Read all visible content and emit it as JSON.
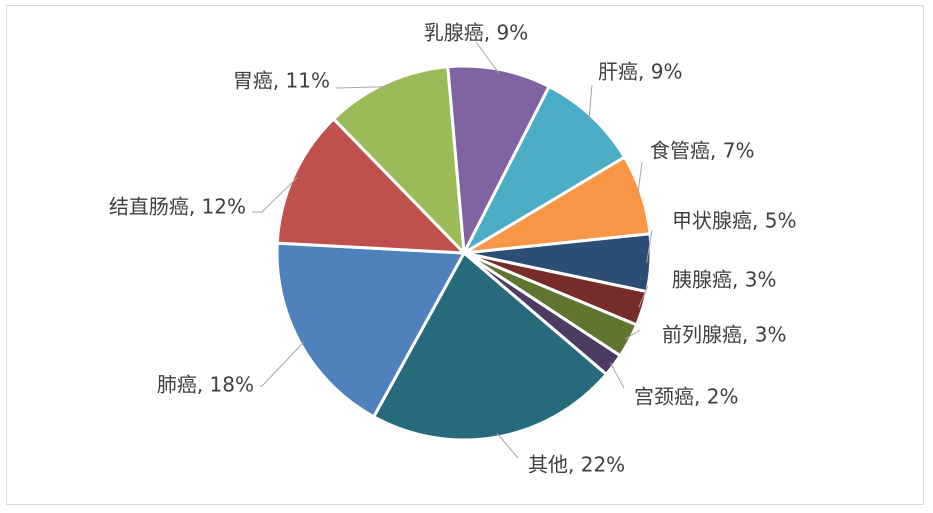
{
  "chart_data": {
    "type": "pie",
    "title": "",
    "legend": "none",
    "slices": [
      {
        "label": "乳腺癌, 9%",
        "name": "乳腺癌",
        "value": 9,
        "color": "#8064A2"
      },
      {
        "label": "肝癌, 9%",
        "name": "肝癌",
        "value": 9,
        "color": "#4BACC6"
      },
      {
        "label": "食管癌, 7%",
        "name": "食管癌",
        "value": 7,
        "color": "#F79646"
      },
      {
        "label": "甲状腺癌, 5%",
        "name": "甲状腺癌",
        "value": 5,
        "color": "#2C4D75"
      },
      {
        "label": "胰腺癌, 3%",
        "name": "胰腺癌",
        "value": 3,
        "color": "#772C2A"
      },
      {
        "label": "前列腺癌, 3%",
        "name": "前列腺癌",
        "value": 3,
        "color": "#5F7530"
      },
      {
        "label": "宫颈癌, 2%",
        "name": "宫颈癌",
        "value": 2,
        "color": "#4D3B62"
      },
      {
        "label": "其他, 22%",
        "name": "其他",
        "value": 22,
        "color": "#276A7C"
      },
      {
        "label": "肺癌, 18%",
        "name": "肺癌",
        "value": 18,
        "color": "#4F81BD"
      },
      {
        "label": "结直肠癌, 12%",
        "name": "结直肠癌",
        "value": 12,
        "color": "#C0504D"
      },
      {
        "label": "胃癌, 11%",
        "name": "胃癌",
        "value": 11,
        "color": "#9BBB59"
      }
    ]
  }
}
